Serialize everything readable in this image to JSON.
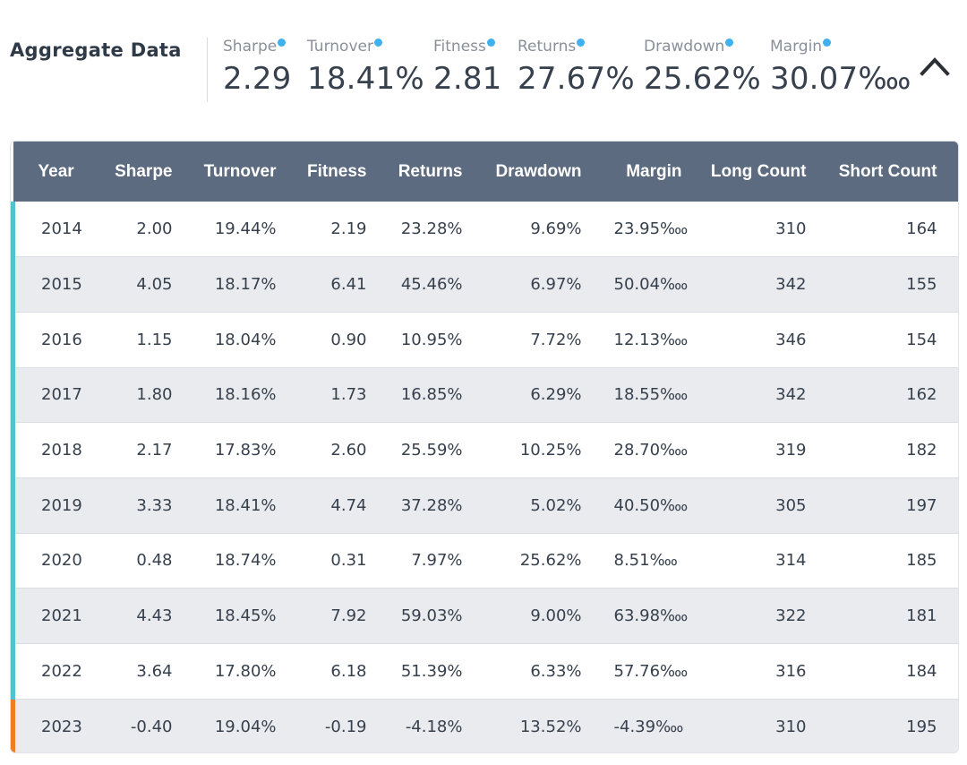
{
  "header": {
    "title": "Aggregate Data",
    "metrics": [
      {
        "label": "Sharpe",
        "value": "2.29"
      },
      {
        "label": "Turnover",
        "value": "18.41%"
      },
      {
        "label": "Fitness",
        "value": "2.81"
      },
      {
        "label": "Returns",
        "value": "27.67%"
      },
      {
        "label": "Drawdown",
        "value": "25.62%"
      },
      {
        "label": "Margin",
        "value": "30.07‱"
      }
    ],
    "collapse_icon": "chevron-up-icon"
  },
  "table": {
    "columns": [
      "Year",
      "Sharpe",
      "Turnover",
      "Fitness",
      "Returns",
      "Drawdown",
      "Margin",
      "Long Count",
      "Short Count"
    ],
    "rows": [
      [
        "2014",
        "2.00",
        "19.44%",
        "2.19",
        "23.28%",
        "9.69%",
        "23.95‱",
        "310",
        "164"
      ],
      [
        "2015",
        "4.05",
        "18.17%",
        "6.41",
        "45.46%",
        "6.97%",
        "50.04‱",
        "342",
        "155"
      ],
      [
        "2016",
        "1.15",
        "18.04%",
        "0.90",
        "10.95%",
        "7.72%",
        "12.13‱",
        "346",
        "154"
      ],
      [
        "2017",
        "1.80",
        "18.16%",
        "1.73",
        "16.85%",
        "6.29%",
        "18.55‱",
        "342",
        "162"
      ],
      [
        "2018",
        "2.17",
        "17.83%",
        "2.60",
        "25.59%",
        "10.25%",
        "28.70‱",
        "319",
        "182"
      ],
      [
        "2019",
        "3.33",
        "18.41%",
        "4.74",
        "37.28%",
        "5.02%",
        "40.50‱",
        "305",
        "197"
      ],
      [
        "2020",
        "0.48",
        "18.74%",
        "0.31",
        "7.97%",
        "25.62%",
        "8.51‱",
        "314",
        "185"
      ],
      [
        "2021",
        "4.43",
        "18.45%",
        "7.92",
        "59.03%",
        "9.00%",
        "63.98‱",
        "322",
        "181"
      ],
      [
        "2022",
        "3.64",
        "17.80%",
        "6.18",
        "51.39%",
        "6.33%",
        "57.76‱",
        "316",
        "184"
      ],
      [
        "2023",
        "-0.40",
        "19.04%",
        "-0.19",
        "-4.18%",
        "13.52%",
        "-4.39‱",
        "310",
        "195"
      ]
    ],
    "colors": {
      "header_bg": "#5c6b7f",
      "row_marker": "#4fc3cf",
      "current_row_marker": "#ef7d22",
      "info_dot": "#3fb0f0"
    }
  }
}
